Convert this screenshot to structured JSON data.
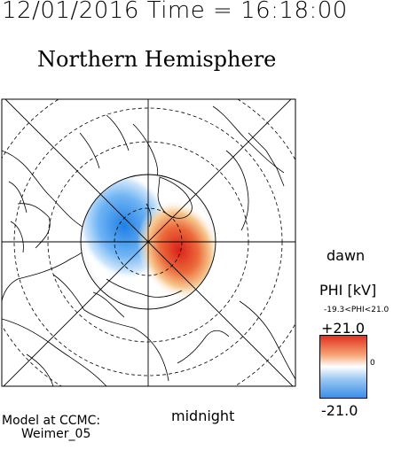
{
  "header": {
    "date": "12/01/2016",
    "time_label": "Time = 16:18:00"
  },
  "title": "Northern Hemisphere",
  "orientation": {
    "right_label": "dawn",
    "bottom_label": "midnight"
  },
  "colorbar": {
    "title": "PHI [kV]",
    "range_text": "-19.3<PHI<21.0",
    "max_label": "+21.0",
    "zero_label": "0",
    "min_label": "-21.0",
    "colors": {
      "positive": "#e03020",
      "neutral": "#ffffff",
      "negative": "#3a8ee8"
    }
  },
  "footer": {
    "line1": "Model at CCMC:",
    "line2": "Weimer_05"
  }
}
